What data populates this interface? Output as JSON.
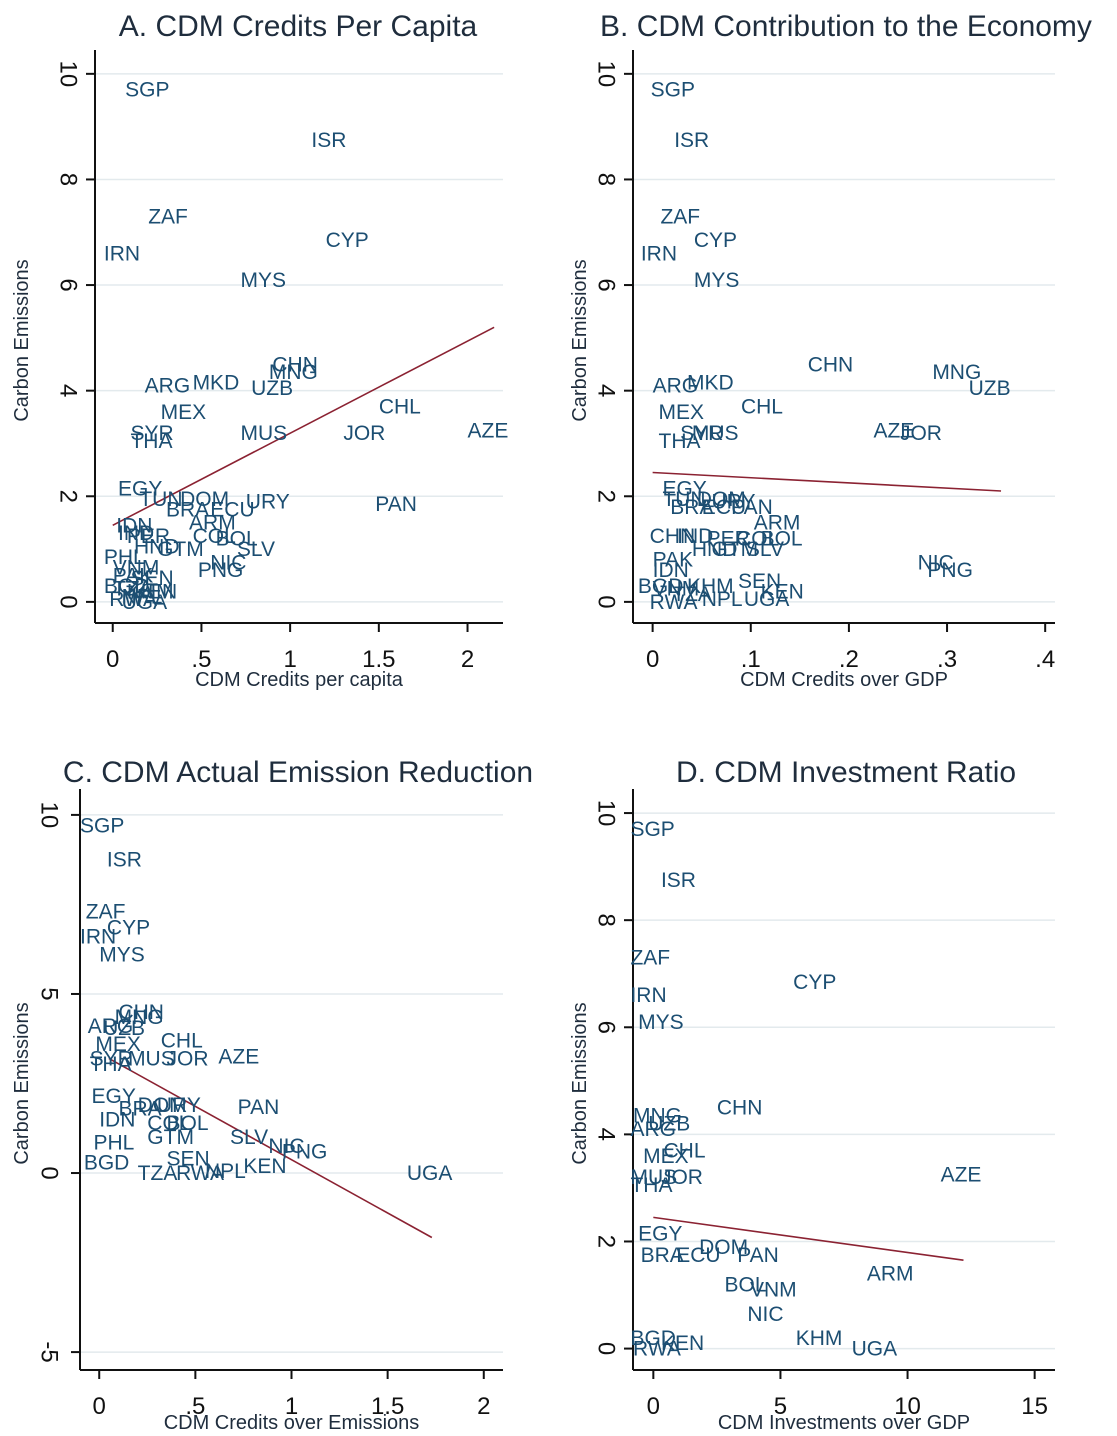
{
  "chart_data": [
    {
      "type": "scatter",
      "title": "A. CDM Credits Per Capita",
      "xlabel": "CDM Credits per capita",
      "ylabel": "Carbon Emissions",
      "xlim": [
        -0.1,
        2.2
      ],
      "ylim": [
        -0.4,
        10.3
      ],
      "xticks": [
        0,
        0.5,
        1,
        1.5,
        2
      ],
      "xtick_labels": [
        "0",
        ".5",
        "1",
        "1.5",
        "2"
      ],
      "yticks": [
        0,
        2,
        4,
        6,
        8,
        10
      ],
      "ytick_labels": [
        "0",
        "2",
        "4",
        "6",
        "8",
        "10"
      ],
      "grid": true,
      "points": [
        {
          "label": "SGP",
          "x": 0.07,
          "y": 9.7
        },
        {
          "label": "ISR",
          "x": 1.12,
          "y": 8.75
        },
        {
          "label": "ZAF",
          "x": 0.2,
          "y": 7.3
        },
        {
          "label": "CYP",
          "x": 1.2,
          "y": 6.85
        },
        {
          "label": "IRN",
          "x": -0.05,
          "y": 6.6
        },
        {
          "label": "MYS",
          "x": 0.72,
          "y": 6.1
        },
        {
          "label": "CHN",
          "x": 0.9,
          "y": 4.5
        },
        {
          "label": "MNG",
          "x": 0.88,
          "y": 4.35
        },
        {
          "label": "MKD",
          "x": 0.45,
          "y": 4.15
        },
        {
          "label": "ARG",
          "x": 0.18,
          "y": 4.1
        },
        {
          "label": "UZB",
          "x": 0.78,
          "y": 4.05
        },
        {
          "label": "CHL",
          "x": 1.5,
          "y": 3.7
        },
        {
          "label": "MEX",
          "x": 0.27,
          "y": 3.6
        },
        {
          "label": "AZE",
          "x": 2.0,
          "y": 3.25
        },
        {
          "label": "MUS",
          "x": 0.72,
          "y": 3.2
        },
        {
          "label": "JOR",
          "x": 1.3,
          "y": 3.2
        },
        {
          "label": "SYR",
          "x": 0.1,
          "y": 3.2
        },
        {
          "label": "THA",
          "x": 0.1,
          "y": 3.05
        },
        {
          "label": "EGY",
          "x": 0.03,
          "y": 2.15
        },
        {
          "label": "TUN",
          "x": 0.15,
          "y": 1.95
        },
        {
          "label": "DOM",
          "x": 0.38,
          "y": 1.95
        },
        {
          "label": "URY",
          "x": 0.75,
          "y": 1.9
        },
        {
          "label": "PAN",
          "x": 1.48,
          "y": 1.85
        },
        {
          "label": "BRA",
          "x": 0.3,
          "y": 1.75
        },
        {
          "label": "ECU",
          "x": 0.55,
          "y": 1.75
        },
        {
          "label": "ARM",
          "x": 0.43,
          "y": 1.5
        },
        {
          "label": "IDN",
          "x": 0.02,
          "y": 1.45
        },
        {
          "label": "IND",
          "x": 0.03,
          "y": 1.3
        },
        {
          "label": "PER",
          "x": 0.08,
          "y": 1.25
        },
        {
          "label": "COL",
          "x": 0.45,
          "y": 1.25
        },
        {
          "label": "BOL",
          "x": 0.58,
          "y": 1.2
        },
        {
          "label": "GTM",
          "x": 0.25,
          "y": 1.0
        },
        {
          "label": "SLV",
          "x": 0.7,
          "y": 1.0
        },
        {
          "label": "HND",
          "x": 0.12,
          "y": 1.05
        },
        {
          "label": "PHL",
          "x": -0.05,
          "y": 0.85
        },
        {
          "label": "NIC",
          "x": 0.55,
          "y": 0.75
        },
        {
          "label": "PNG",
          "x": 0.48,
          "y": 0.6
        },
        {
          "label": "VNM",
          "x": 0.0,
          "y": 0.65
        },
        {
          "label": "PAK",
          "x": 0.0,
          "y": 0.5
        },
        {
          "label": "SEN",
          "x": 0.1,
          "y": 0.45
        },
        {
          "label": "BGD",
          "x": -0.05,
          "y": 0.3
        },
        {
          "label": "KEN",
          "x": 0.12,
          "y": 0.2
        },
        {
          "label": "NPL",
          "x": 0.05,
          "y": 0.1
        },
        {
          "label": "RWA",
          "x": -0.02,
          "y": 0.05
        },
        {
          "label": "UGA",
          "x": 0.05,
          "y": 0.0
        },
        {
          "label": "KHM",
          "x": 0.08,
          "y": 0.2
        },
        {
          "label": "TZA",
          "x": 0.0,
          "y": 0.25
        }
      ],
      "fit_line": {
        "x": [
          0.0,
          2.15
        ],
        "y": [
          1.45,
          5.2
        ]
      }
    },
    {
      "type": "scatter",
      "title": "B. CDM Contribution to the Economy",
      "xlabel": "CDM Credits over GDP",
      "ylabel": "Carbon Emissions",
      "xlim": [
        -0.02,
        0.41
      ],
      "ylim": [
        -0.4,
        10.3
      ],
      "xticks": [
        0,
        0.1,
        0.2,
        0.3,
        0.4
      ],
      "xtick_labels": [
        "0",
        ".1",
        ".2",
        ".3",
        ".4"
      ],
      "yticks": [
        0,
        2,
        4,
        6,
        8,
        10
      ],
      "ytick_labels": [
        "0",
        "2",
        "4",
        "6",
        "8",
        "10"
      ],
      "grid": true,
      "points": [
        {
          "label": "SGP",
          "x": -0.002,
          "y": 9.7
        },
        {
          "label": "ISR",
          "x": 0.022,
          "y": 8.75
        },
        {
          "label": "ZAF",
          "x": 0.008,
          "y": 7.3
        },
        {
          "label": "CYP",
          "x": 0.042,
          "y": 6.85
        },
        {
          "label": "IRN",
          "x": -0.012,
          "y": 6.6
        },
        {
          "label": "MYS",
          "x": 0.042,
          "y": 6.1
        },
        {
          "label": "CHN",
          "x": 0.158,
          "y": 4.5
        },
        {
          "label": "MNG",
          "x": 0.285,
          "y": 4.35
        },
        {
          "label": "UZB",
          "x": 0.322,
          "y": 4.05
        },
        {
          "label": "MKD",
          "x": 0.035,
          "y": 4.15
        },
        {
          "label": "ARG",
          "x": 0.0,
          "y": 4.1
        },
        {
          "label": "CHL",
          "x": 0.09,
          "y": 3.7
        },
        {
          "label": "MEX",
          "x": 0.006,
          "y": 3.6
        },
        {
          "label": "AZE",
          "x": 0.225,
          "y": 3.25
        },
        {
          "label": "JOR",
          "x": 0.252,
          "y": 3.2
        },
        {
          "label": "MUS",
          "x": 0.04,
          "y": 3.2
        },
        {
          "label": "SYR",
          "x": 0.028,
          "y": 3.2
        },
        {
          "label": "THA",
          "x": 0.006,
          "y": 3.05
        },
        {
          "label": "EGY",
          "x": 0.01,
          "y": 2.15
        },
        {
          "label": "TUN",
          "x": 0.01,
          "y": 1.95
        },
        {
          "label": "DOM",
          "x": 0.045,
          "y": 1.95
        },
        {
          "label": "URY",
          "x": 0.06,
          "y": 1.9
        },
        {
          "label": "BRA",
          "x": 0.018,
          "y": 1.8
        },
        {
          "label": "ECU",
          "x": 0.05,
          "y": 1.8
        },
        {
          "label": "PAN",
          "x": 0.08,
          "y": 1.8
        },
        {
          "label": "ARM",
          "x": 0.103,
          "y": 1.5
        },
        {
          "label": "CHN",
          "x": -0.003,
          "y": 1.25
        },
        {
          "label": "IND",
          "x": 0.025,
          "y": 1.25
        },
        {
          "label": "PER",
          "x": 0.055,
          "y": 1.2
        },
        {
          "label": "COL",
          "x": 0.085,
          "y": 1.2
        },
        {
          "label": "BOL",
          "x": 0.11,
          "y": 1.2
        },
        {
          "label": "HND",
          "x": 0.04,
          "y": 1.0
        },
        {
          "label": "GTM",
          "x": 0.06,
          "y": 1.0
        },
        {
          "label": "SLV",
          "x": 0.095,
          "y": 1.0
        },
        {
          "label": "PAK",
          "x": 0.0,
          "y": 0.8
        },
        {
          "label": "IDN",
          "x": 0.0,
          "y": 0.6
        },
        {
          "label": "NIC",
          "x": 0.27,
          "y": 0.75
        },
        {
          "label": "PNG",
          "x": 0.28,
          "y": 0.6
        },
        {
          "label": "SEN",
          "x": 0.087,
          "y": 0.4
        },
        {
          "label": "BGD",
          "x": -0.015,
          "y": 0.3
        },
        {
          "label": "KHM",
          "x": 0.035,
          "y": 0.3
        },
        {
          "label": "NPL",
          "x": 0.05,
          "y": 0.05
        },
        {
          "label": "KEN",
          "x": 0.11,
          "y": 0.2
        },
        {
          "label": "RWA",
          "x": -0.003,
          "y": 0.0
        },
        {
          "label": "UGA",
          "x": 0.093,
          "y": 0.05
        },
        {
          "label": "TZA",
          "x": 0.02,
          "y": 0.15
        },
        {
          "label": "VNM",
          "x": 0.0,
          "y": 0.25
        }
      ],
      "fit_line": {
        "x": [
          0.0,
          0.355
        ],
        "y": [
          2.45,
          2.1
        ]
      }
    },
    {
      "type": "scatter",
      "title": "C. CDM Actual Emission Reduction",
      "xlabel": "CDM Credits over Emissions",
      "ylabel": "Carbon Emissions",
      "xlim": [
        -0.1,
        2.1
      ],
      "ylim": [
        -5.5,
        10.5
      ],
      "xticks": [
        0,
        0.5,
        1,
        1.5,
        2
      ],
      "xtick_labels": [
        "0",
        ".5",
        "1",
        "1.5",
        "2"
      ],
      "yticks": [
        -5,
        0,
        5,
        10
      ],
      "ytick_labels": [
        "-5",
        "0",
        "5",
        "10"
      ],
      "grid": true,
      "points": [
        {
          "label": "SGP",
          "x": -0.1,
          "y": 9.7
        },
        {
          "label": "ISR",
          "x": 0.04,
          "y": 8.75
        },
        {
          "label": "ZAF",
          "x": -0.07,
          "y": 7.3
        },
        {
          "label": "CYP",
          "x": 0.04,
          "y": 6.85
        },
        {
          "label": "IRN",
          "x": -0.1,
          "y": 6.6
        },
        {
          "label": "MYS",
          "x": 0.0,
          "y": 6.1
        },
        {
          "label": "CHN",
          "x": 0.1,
          "y": 4.5
        },
        {
          "label": "MNG",
          "x": 0.08,
          "y": 4.35
        },
        {
          "label": "ARG",
          "x": -0.06,
          "y": 4.1
        },
        {
          "label": "UZB",
          "x": 0.02,
          "y": 4.05
        },
        {
          "label": "CHL",
          "x": 0.32,
          "y": 3.7
        },
        {
          "label": "MEX",
          "x": -0.02,
          "y": 3.6
        },
        {
          "label": "MUS",
          "x": 0.15,
          "y": 3.2
        },
        {
          "label": "JOR",
          "x": 0.35,
          "y": 3.2
        },
        {
          "label": "AZE",
          "x": 0.62,
          "y": 3.25
        },
        {
          "label": "SYR",
          "x": -0.05,
          "y": 3.2
        },
        {
          "label": "THA",
          "x": -0.05,
          "y": 3.05
        },
        {
          "label": "EGY",
          "x": -0.04,
          "y": 2.15
        },
        {
          "label": "URY",
          "x": 0.3,
          "y": 1.9
        },
        {
          "label": "PAN",
          "x": 0.72,
          "y": 1.85
        },
        {
          "label": "BRA",
          "x": 0.1,
          "y": 1.8
        },
        {
          "label": "DOM",
          "x": 0.2,
          "y": 1.9
        },
        {
          "label": "IDN",
          "x": 0.0,
          "y": 1.5
        },
        {
          "label": "COL",
          "x": 0.25,
          "y": 1.4
        },
        {
          "label": "BOL",
          "x": 0.35,
          "y": 1.4
        },
        {
          "label": "SLV",
          "x": 0.68,
          "y": 1.0
        },
        {
          "label": "GTM",
          "x": 0.25,
          "y": 1.0
        },
        {
          "label": "PHL",
          "x": -0.03,
          "y": 0.85
        },
        {
          "label": "NIC",
          "x": 0.88,
          "y": 0.75
        },
        {
          "label": "PNG",
          "x": 0.95,
          "y": 0.6
        },
        {
          "label": "BGD",
          "x": -0.08,
          "y": 0.3
        },
        {
          "label": "KEN",
          "x": 0.75,
          "y": 0.2
        },
        {
          "label": "SEN",
          "x": 0.35,
          "y": 0.4
        },
        {
          "label": "NPL",
          "x": 0.55,
          "y": 0.05
        },
        {
          "label": "TZA",
          "x": 0.2,
          "y": 0.0
        },
        {
          "label": "RWA",
          "x": 0.4,
          "y": 0.0
        },
        {
          "label": "UGA",
          "x": 1.6,
          "y": 0.0
        }
      ],
      "fit_line": {
        "x": [
          0.05,
          1.73
        ],
        "y": [
          3.2,
          -1.8
        ]
      }
    },
    {
      "type": "scatter",
      "title": "D. CDM Investment Ratio",
      "xlabel": "CDM Investments over GDP",
      "ylabel": "Carbon Emissions",
      "xlim": [
        -0.8,
        15.8
      ],
      "ylim": [
        -0.4,
        10.3
      ],
      "xticks": [
        0,
        5,
        10,
        15
      ],
      "xtick_labels": [
        "0",
        "5",
        "10",
        "15"
      ],
      "yticks": [
        0,
        2,
        4,
        6,
        8,
        10
      ],
      "ytick_labels": [
        "0",
        "2",
        "4",
        "6",
        "8",
        "10"
      ],
      "grid": true,
      "points": [
        {
          "label": "SGP",
          "x": -0.9,
          "y": 9.7
        },
        {
          "label": "ISR",
          "x": 0.3,
          "y": 8.75
        },
        {
          "label": "ZAF",
          "x": -0.9,
          "y": 7.3
        },
        {
          "label": "CYP",
          "x": 5.5,
          "y": 6.85
        },
        {
          "label": "IRN",
          "x": -0.9,
          "y": 6.6
        },
        {
          "label": "MYS",
          "x": -0.6,
          "y": 6.1
        },
        {
          "label": "CHN",
          "x": 2.5,
          "y": 4.5
        },
        {
          "label": "MNG",
          "x": -0.8,
          "y": 4.35
        },
        {
          "label": "UZB",
          "x": -0.2,
          "y": 4.2
        },
        {
          "label": "ARG",
          "x": -0.9,
          "y": 4.1
        },
        {
          "label": "CHL",
          "x": 0.4,
          "y": 3.7
        },
        {
          "label": "MEX",
          "x": -0.4,
          "y": 3.6
        },
        {
          "label": "AZE",
          "x": 11.3,
          "y": 3.25
        },
        {
          "label": "MUS",
          "x": -0.9,
          "y": 3.2
        },
        {
          "label": "JOR",
          "x": 0.3,
          "y": 3.2
        },
        {
          "label": "THA",
          "x": -0.9,
          "y": 3.05
        },
        {
          "label": "EGY",
          "x": -0.6,
          "y": 2.15
        },
        {
          "label": "DOM",
          "x": 1.8,
          "y": 1.9
        },
        {
          "label": "PAN",
          "x": 3.3,
          "y": 1.75
        },
        {
          "label": "BRA",
          "x": -0.5,
          "y": 1.75
        },
        {
          "label": "ECU",
          "x": 0.9,
          "y": 1.75
        },
        {
          "label": "ARM",
          "x": 8.4,
          "y": 1.4
        },
        {
          "label": "BOL",
          "x": 2.8,
          "y": 1.2
        },
        {
          "label": "VNM",
          "x": 3.8,
          "y": 1.1
        },
        {
          "label": "NIC",
          "x": 3.7,
          "y": 0.65
        },
        {
          "label": "KHM",
          "x": 5.6,
          "y": 0.2
        },
        {
          "label": "UGA",
          "x": 7.8,
          "y": 0.0
        },
        {
          "label": "KEN",
          "x": 0.3,
          "y": 0.1
        },
        {
          "label": "BGD",
          "x": -0.9,
          "y": 0.2
        },
        {
          "label": "RWA",
          "x": -0.8,
          "y": 0.0
        }
      ],
      "fit_line": {
        "x": [
          0.0,
          12.2
        ],
        "y": [
          2.45,
          1.65
        ]
      }
    }
  ]
}
